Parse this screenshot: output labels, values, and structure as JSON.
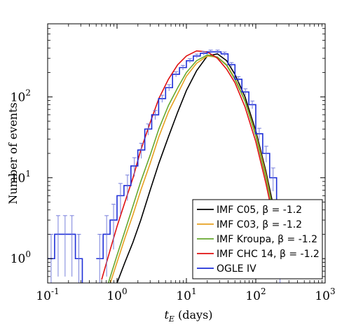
{
  "chart_data": {
    "type": "line",
    "title": "",
    "xlabel": "t_E (days)",
    "ylabel": "Number of events",
    "xscale": "log",
    "yscale": "log",
    "xlim": [
      0.1,
      1000
    ],
    "ylim": [
      0.5,
      800
    ],
    "grid": false,
    "legend_position": "bottom-right",
    "x_ticks": [
      {
        "value": 0.1,
        "base": "10",
        "exp": "-1"
      },
      {
        "value": 1,
        "base": "10",
        "exp": "0"
      },
      {
        "value": 10,
        "base": "10",
        "exp": "1"
      },
      {
        "value": 100,
        "base": "10",
        "exp": "2"
      },
      {
        "value": 1000,
        "base": "10",
        "exp": "3"
      }
    ],
    "y_ticks": [
      {
        "value": 1,
        "base": "10",
        "exp": "0"
      },
      {
        "value": 10,
        "base": "10",
        "exp": "1"
      },
      {
        "value": 100,
        "base": "10",
        "exp": "2"
      }
    ],
    "xlabel_parts": {
      "var": "t",
      "sub": "E",
      "unit": " (days)"
    },
    "series": [
      {
        "name": "IMF C05, β = -1.2",
        "color": "#000000",
        "kind": "line",
        "x": [
          1.0,
          1.3,
          1.7,
          2.2,
          3,
          4,
          5.5,
          7.5,
          10,
          14,
          20,
          28,
          38,
          50,
          70,
          100,
          140,
          190,
          260
        ],
        "y": [
          0.5,
          0.9,
          1.6,
          3.0,
          7,
          15,
          32,
          65,
          120,
          210,
          320,
          340,
          280,
          190,
          100,
          38,
          12,
          3.5,
          0.7
        ]
      },
      {
        "name": "IMF C03, β = -1.2",
        "color": "#E6A020",
        "kind": "line",
        "x": [
          0.8,
          1.0,
          1.3,
          1.7,
          2.2,
          3,
          4,
          5.5,
          7.5,
          10,
          14,
          20,
          28,
          38,
          50,
          70,
          100,
          140,
          190,
          250
        ],
        "y": [
          0.5,
          0.9,
          1.8,
          3.5,
          7,
          15,
          32,
          65,
          110,
          180,
          260,
          320,
          310,
          250,
          170,
          90,
          35,
          11,
          3,
          0.7
        ]
      },
      {
        "name": "IMF Kroupa, β = -1.2",
        "color": "#66A830",
        "kind": "line",
        "x": [
          0.75,
          1.0,
          1.3,
          1.7,
          2.2,
          3,
          4,
          5.5,
          7.5,
          10,
          14,
          20,
          28,
          38,
          50,
          70,
          100,
          140,
          190,
          250
        ],
        "y": [
          0.5,
          1.1,
          2.2,
          4.5,
          9,
          19,
          40,
          78,
          130,
          200,
          280,
          330,
          310,
          245,
          165,
          88,
          33,
          10,
          3,
          0.65
        ]
      },
      {
        "name": "IMF CHC 14, β = -1.2",
        "color": "#E01010",
        "kind": "line",
        "x": [
          0.6,
          0.8,
          1.0,
          1.3,
          1.7,
          2.2,
          3,
          4,
          5.5,
          7.5,
          10,
          14,
          20,
          28,
          38,
          50,
          70,
          100,
          140,
          190,
          240
        ],
        "y": [
          0.55,
          1.3,
          2.5,
          5,
          10,
          22,
          48,
          95,
          165,
          250,
          320,
          370,
          360,
          300,
          220,
          150,
          75,
          28,
          8.5,
          2.5,
          0.6
        ]
      },
      {
        "name": "OGLE IV",
        "color": "#1E2FD8",
        "kind": "step",
        "edges": [
          0.063,
          0.1,
          0.126,
          0.159,
          0.2,
          0.251,
          0.316,
          0.398,
          0.501,
          0.631,
          0.794,
          1.0,
          1.259,
          1.585,
          1.995,
          2.512,
          3.162,
          3.981,
          5.012,
          6.31,
          7.943,
          10.0,
          12.59,
          15.85,
          19.95,
          25.12,
          31.62,
          39.81,
          50.12,
          63.1,
          79.43,
          100.0,
          125.9,
          158.5,
          199.5
        ],
        "values": [
          0.0,
          1,
          2,
          2,
          2,
          1,
          0.0,
          0.0,
          1,
          2,
          3,
          6,
          8,
          14,
          22,
          40,
          60,
          95,
          130,
          190,
          230,
          280,
          320,
          345,
          360,
          360,
          340,
          250,
          165,
          115,
          80,
          35,
          20,
          10,
          1
        ],
        "errors": [
          0,
          1.0,
          1.4,
          1.4,
          1.4,
          1.0,
          0,
          0,
          1.0,
          1.4,
          1.7,
          2.5,
          2.8,
          3.7,
          4.7,
          6.3,
          7.7,
          9.7,
          11.4,
          13.8,
          15.2,
          16.7,
          17.9,
          18.6,
          19.0,
          19.0,
          18.4,
          15.8,
          12.8,
          10.7,
          8.9,
          5.9,
          4.5,
          3.2,
          1.0
        ]
      }
    ]
  }
}
